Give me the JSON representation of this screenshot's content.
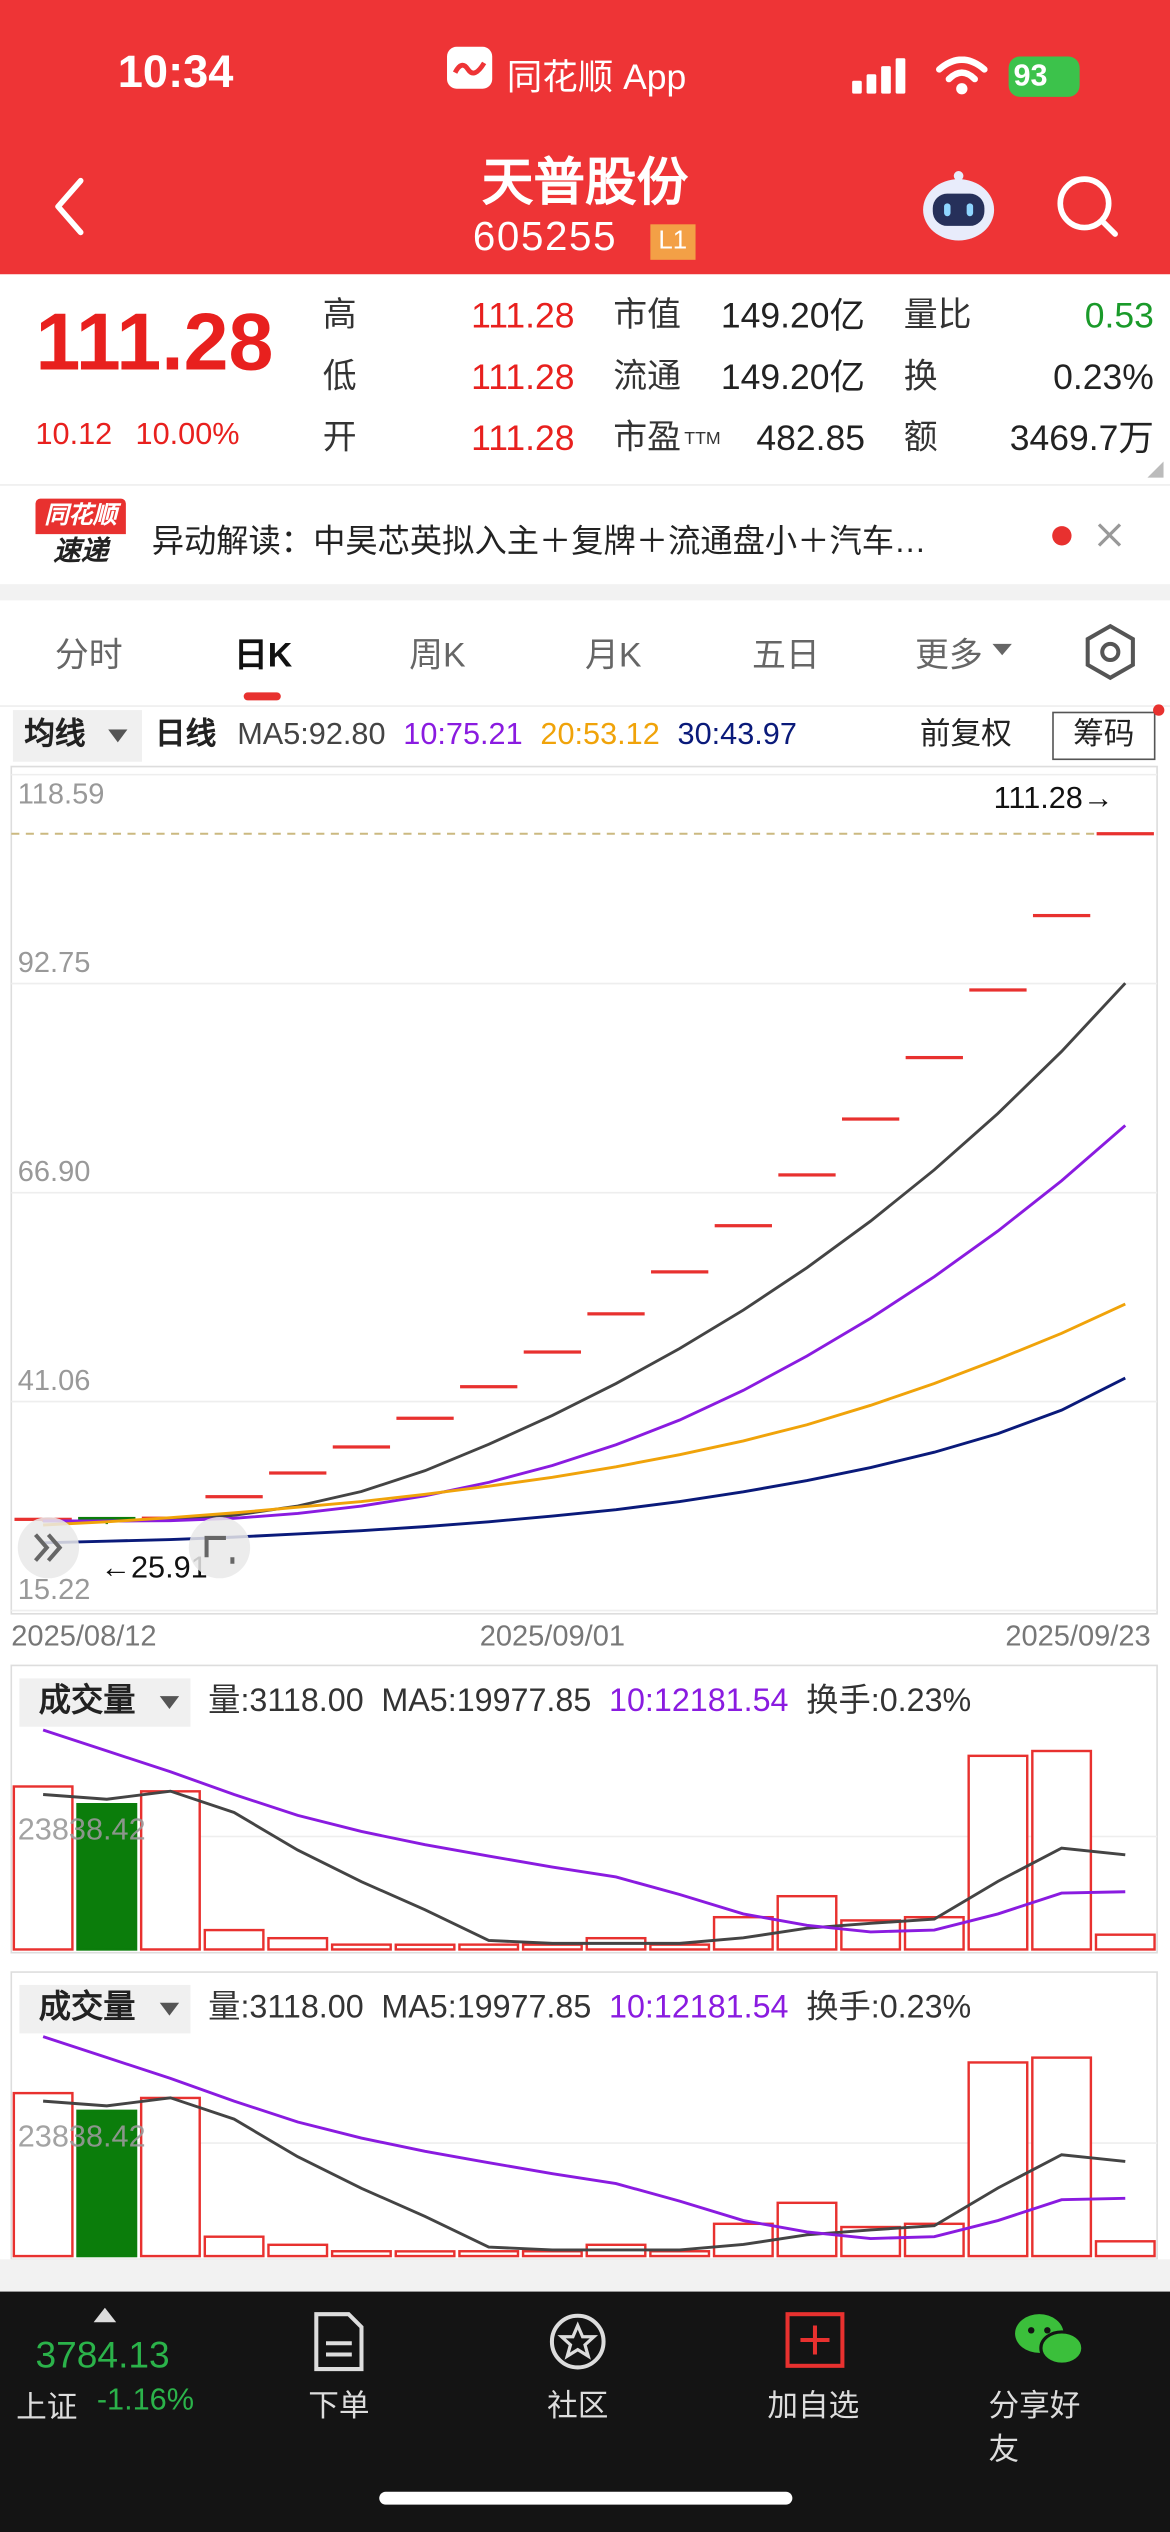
{
  "status_bar": {
    "time": "10:34",
    "app": "同花顺 App",
    "battery": "93"
  },
  "header": {
    "title": "天普股份",
    "code": "605255",
    "badge": "L1"
  },
  "quote": {
    "price": "111.28",
    "change": "10.12",
    "change_pct": "10.00%",
    "fields": [
      [
        {
          "label": "高",
          "value": "111.28"
        },
        {
          "label": "市值",
          "value": "149.20亿"
        },
        {
          "label": "量比",
          "value": "0.53"
        }
      ],
      [
        {
          "label": "低",
          "value": "111.28"
        },
        {
          "label": "流通",
          "value": "149.20亿"
        },
        {
          "label": "换",
          "value": "0.23%"
        }
      ],
      [
        {
          "label": "开",
          "value": "111.28"
        },
        {
          "label": "市盈",
          "sup": "TTM",
          "value": "482.85"
        },
        {
          "label": "额",
          "value": "3469.7万"
        }
      ]
    ]
  },
  "news": {
    "badge": [
      "同花顺",
      "速递"
    ],
    "text": "异动解读：中昊芯英拟入主＋复牌＋流通盘小＋汽车…"
  },
  "tabs": [
    "分时",
    "日K",
    "周K",
    "月K",
    "五日",
    "更多"
  ],
  "toolbar": {
    "ma_button": "均线",
    "period": "日线",
    "adjust": "前复权",
    "chips": "筹码"
  },
  "chart_data": [
    {
      "type": "candlestick",
      "categories": [
        "2025/08/12",
        null,
        null,
        null,
        null,
        null,
        null,
        null,
        "2025/09/01",
        null,
        null,
        null,
        null,
        null,
        null,
        null,
        null,
        "2025/09/23"
      ],
      "open": [
        26.3,
        26.6,
        26.64,
        29.3,
        32.23,
        35.45,
        39,
        42.9,
        47.19,
        51.91,
        57.1,
        62.81,
        69.09,
        76,
        83.6,
        91.96,
        101.16,
        111.28
      ],
      "high": [
        26.6,
        26.7,
        26.64,
        29.3,
        32.23,
        35.45,
        39,
        42.9,
        47.19,
        51.91,
        57.1,
        62.81,
        69.09,
        76,
        83.6,
        91.96,
        101.16,
        111.28
      ],
      "low": [
        26.2,
        25.91,
        26.64,
        29.3,
        32.23,
        35.45,
        39,
        42.9,
        47.19,
        51.91,
        57.1,
        62.81,
        69.09,
        76,
        83.6,
        91.96,
        101.16,
        111.28
      ],
      "close": [
        26.5,
        26.1,
        26.64,
        29.3,
        32.23,
        35.45,
        39,
        42.9,
        47.19,
        51.91,
        57.1,
        62.81,
        69.09,
        76,
        83.6,
        91.96,
        101.16,
        111.28
      ],
      "up_color": "#e8312f",
      "down_color": "#0b7d0b",
      "series": [
        {
          "name": "MA5:92.80",
          "color": "#444444",
          "values": [
            26.3,
            26.3,
            26.4,
            27.0,
            28.15,
            29.94,
            32.52,
            35.78,
            39.35,
            43.29,
            47.62,
            52.38,
            57.62,
            63.38,
            69.72,
            76.69,
            84.36,
            92.8
          ]
        },
        {
          "name": "10:75.21",
          "color": "#8a1be0",
          "values": [
            26.3,
            26.3,
            26.33,
            26.63,
            27.23,
            28.14,
            29.41,
            31.07,
            33.16,
            35.72,
            38.78,
            42.45,
            46.7,
            51.37,
            56.51,
            62.16,
            68.37,
            75.21
          ]
        },
        {
          "name": "20:53.12",
          "color": "#f0a30a",
          "values": [
            25.8,
            26.2,
            26.7,
            27.3,
            28,
            28.7,
            29.6,
            30.6,
            31.7,
            33,
            34.5,
            36.2,
            38.2,
            40.6,
            43.3,
            46.3,
            49.5,
            53.12
          ]
        },
        {
          "name": "30:43.97",
          "color": "#0a1a7a",
          "values": [
            23.6,
            23.8,
            24,
            24.3,
            24.7,
            25.1,
            25.6,
            26.2,
            26.9,
            27.7,
            28.7,
            29.9,
            31.3,
            32.9,
            34.8,
            37.1,
            40,
            43.97
          ]
        }
      ],
      "ylim": [
        15.22,
        118.59
      ],
      "yticks": [
        15.22,
        41.06,
        {
          "value": 66.9,
          "label": "66.90"
        },
        92.75,
        118.59
      ],
      "grid": true,
      "annotations": [
        {
          "value": 111.28,
          "text": "111.28→"
        },
        {
          "value": 25.91,
          "text": "←25.91"
        }
      ]
    },
    {
      "type": "volume",
      "title": "成交量",
      "volume_label": "量:3118.00",
      "turnover_label": "换手:0.23%",
      "values": [
        34390,
        30650,
        33370,
        4090,
        2380,
        1020,
        1000,
        1020,
        1020,
        2380,
        1020,
        6810,
        11240,
        6130,
        6810,
        40860,
        41880,
        3118
      ],
      "colors": [
        "#e8312f",
        "#0b7d0b",
        "#e8312f",
        "#e8312f",
        "#e8312f",
        "#e8312f",
        "#e8312f",
        "#e8312f",
        "#e8312f",
        "#e8312f",
        "#e8312f",
        "#e8312f",
        "#e8312f",
        "#e8312f",
        "#e8312f",
        "#e8312f",
        "#e8312f",
        "#e8312f"
      ],
      "down_color": "#0b7d0b",
      "series": [
        {
          "name": "MA5:19977.85",
          "color": "#444444",
          "values": [
            32700,
            31700,
            33400,
            28900,
            20976,
            14302,
            8372,
            1902,
            1288,
            1288,
            1288,
            2450,
            4494,
            5516,
            6402,
            14370,
            21384,
            19977.85
          ]
        },
        {
          "name": "10:12181.54",
          "color": "#8a1be0",
          "values": [
            46300,
            41900,
            37500,
            32700,
            28300,
            24900,
            22100,
            19700,
            17400,
            15300,
            11600,
            7500,
            5100,
            3700,
            4100,
            7500,
            11900,
            12181.54
          ]
        }
      ],
      "ylim": [
        0,
        47676.84
      ],
      "yticks": [
        23838.42
      ],
      "grid": true
    },
    {
      "type": "volume",
      "title": "成交量",
      "volume_label": "量:3118.00",
      "turnover_label": "换手:0.23%",
      "values": [
        34390,
        30650,
        33370,
        4090,
        2380,
        1020,
        1000,
        1020,
        1020,
        2380,
        1020,
        6810,
        11240,
        6130,
        6810,
        40860,
        41880,
        3118
      ],
      "colors": [
        "#e8312f",
        "#0b7d0b",
        "#e8312f",
        "#e8312f",
        "#e8312f",
        "#e8312f",
        "#e8312f",
        "#e8312f",
        "#e8312f",
        "#e8312f",
        "#e8312f",
        "#e8312f",
        "#e8312f",
        "#e8312f",
        "#e8312f",
        "#e8312f",
        "#e8312f",
        "#e8312f"
      ],
      "down_color": "#0b7d0b",
      "series": [
        {
          "name": "MA5:19977.85",
          "color": "#444444",
          "values": [
            32700,
            31700,
            33400,
            28900,
            20976,
            14302,
            8372,
            1902,
            1288,
            1288,
            1288,
            2450,
            4494,
            5516,
            6402,
            14370,
            21384,
            19977.85
          ]
        },
        {
          "name": "10:12181.54",
          "color": "#8a1be0",
          "values": [
            46300,
            41900,
            37500,
            32700,
            28300,
            24900,
            22100,
            19700,
            17400,
            15300,
            11600,
            7500,
            5100,
            3700,
            4100,
            7500,
            11900,
            12181.54
          ]
        }
      ],
      "ylim": [
        0,
        47676.84
      ],
      "yticks": [
        23838.42
      ],
      "grid": true
    }
  ],
  "bottom_bar": {
    "index_value": "3784.13",
    "index_name": "上证",
    "index_change": "-1.16%",
    "items": [
      "下单",
      "社区",
      "加自选",
      "分享好友"
    ]
  }
}
